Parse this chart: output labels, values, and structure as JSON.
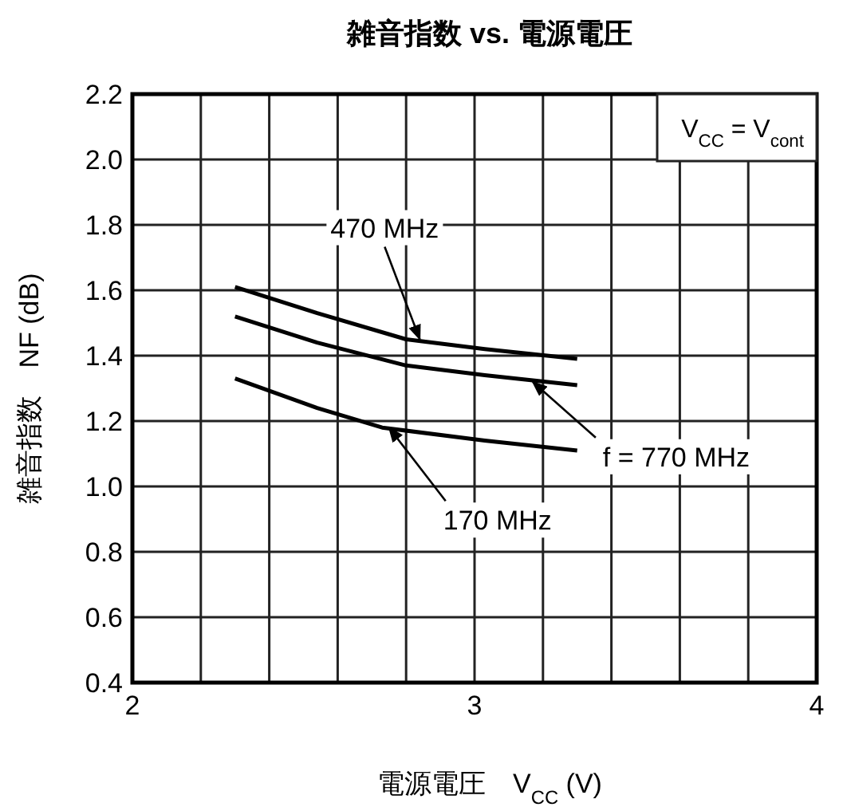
{
  "chart_data": {
    "type": "line",
    "title": "雑音指数  vs. 電源電圧",
    "xlabel": "電源電圧　V$_{CC}$ (V)",
    "ylabel": "雑音指数　NF (dB)",
    "xlim": [
      2,
      4
    ],
    "xticks": [
      2,
      {
        "value": 2.2,
        "label": null
      },
      {
        "value": 2.4,
        "label": null
      },
      {
        "value": 2.6,
        "label": null
      },
      {
        "value": 2.8,
        "label": null
      },
      3,
      {
        "value": 3.2,
        "label": null
      },
      {
        "value": 3.4,
        "label": null
      },
      {
        "value": 3.6,
        "label": null
      },
      {
        "value": 3.8,
        "label": null
      },
      4
    ],
    "ylim": [
      0.4,
      2.2
    ],
    "yticks": [
      {
        "value": 0.4,
        "label": "0.4"
      },
      {
        "value": 0.6,
        "label": "0.6"
      },
      {
        "value": 0.8,
        "label": "0.8"
      },
      {
        "value": 1.0,
        "label": "1.0"
      },
      {
        "value": 1.2,
        "label": "1.2"
      },
      {
        "value": 1.4,
        "label": "1.4"
      },
      {
        "value": 1.6,
        "label": "1.6"
      },
      {
        "value": 1.8,
        "label": "1.8"
      },
      {
        "value": 2.0,
        "label": "2.0"
      },
      {
        "value": 2.2,
        "label": "2.2"
      }
    ],
    "grid": true,
    "marker": "none",
    "line_style": "solid",
    "series": [
      {
        "color": "#000000",
        "x": [
          2.3,
          2.54,
          2.8,
          3.03,
          3.3
        ],
        "values": [
          1.61,
          1.53,
          1.45,
          1.42,
          1.39
        ]
      },
      {
        "color": "#000000",
        "x": [
          2.3,
          2.54,
          2.8,
          3.03,
          3.3
        ],
        "values": [
          1.52,
          1.44,
          1.37,
          1.34,
          1.31
        ]
      },
      {
        "color": "#000000",
        "x": [
          2.3,
          2.54,
          2.73,
          3.03,
          3.3
        ],
        "values": [
          1.33,
          1.24,
          1.18,
          1.14,
          1.11
        ]
      }
    ],
    "annotations": [
      {
        "text": "470 MHz",
        "x": 2.84,
        "y": 1.45
      },
      {
        "text": "f = 770 MHz",
        "x": 3.17,
        "y": 1.32
      },
      {
        "text": "170 MHz",
        "x": 2.75,
        "y": 1.18
      },
      "V$_{CC}$ = V$_{cont}$"
    ]
  }
}
